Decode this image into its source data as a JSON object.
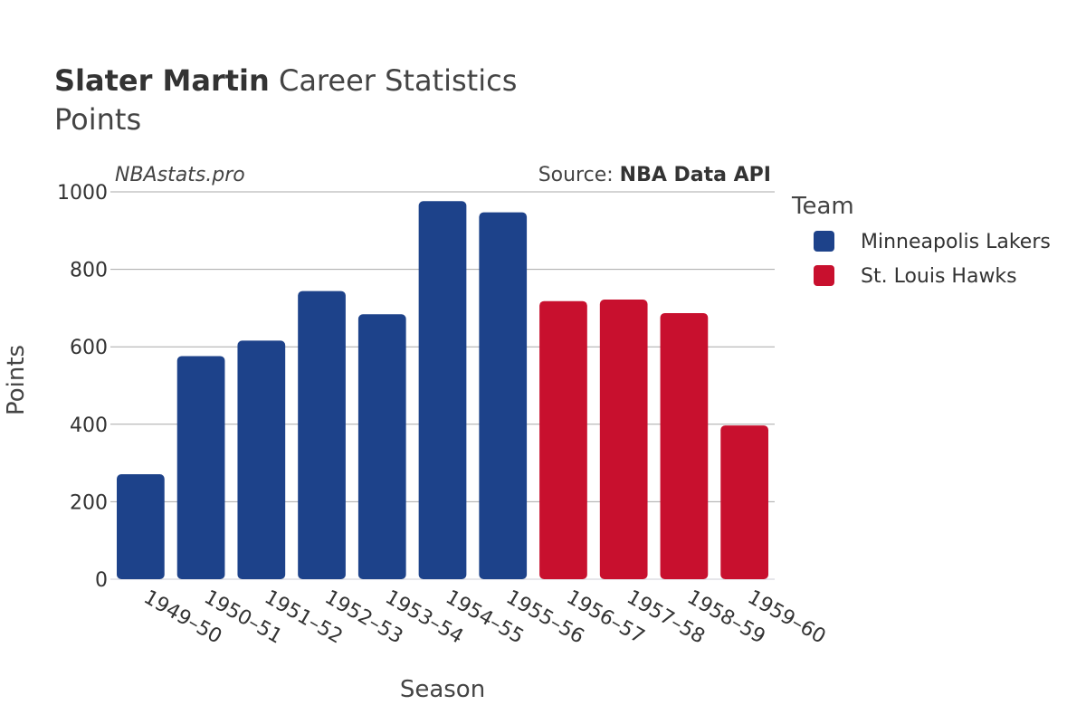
{
  "chart_data": {
    "type": "bar",
    "title_bold": "Slater Martin",
    "title_rest": " Career Statistics",
    "subtitle": "Points",
    "watermark": "NBAstats.pro",
    "source_label": "Source: ",
    "source_name": "NBA Data API",
    "xlabel": "Season",
    "ylabel": "Points",
    "ylim": [
      0,
      1000
    ],
    "yticks": [
      0,
      200,
      400,
      600,
      800,
      1000
    ],
    "grid": true,
    "legend_title": "Team",
    "legend_position": "right",
    "teams": [
      {
        "name": "Minneapolis Lakers",
        "color": "#1d428a"
      },
      {
        "name": "St. Louis Hawks",
        "color": "#c8102e"
      }
    ],
    "categories": [
      "1949–50",
      "1950–51",
      "1951–52",
      "1952–53",
      "1953–54",
      "1954–55",
      "1955–56",
      "1956–57",
      "1957–58",
      "1958–59",
      "1959–60"
    ],
    "values": [
      271,
      576,
      616,
      744,
      684,
      976,
      947,
      718,
      722,
      687,
      397
    ],
    "team_index": [
      0,
      0,
      0,
      0,
      0,
      0,
      0,
      1,
      1,
      1,
      1
    ]
  }
}
